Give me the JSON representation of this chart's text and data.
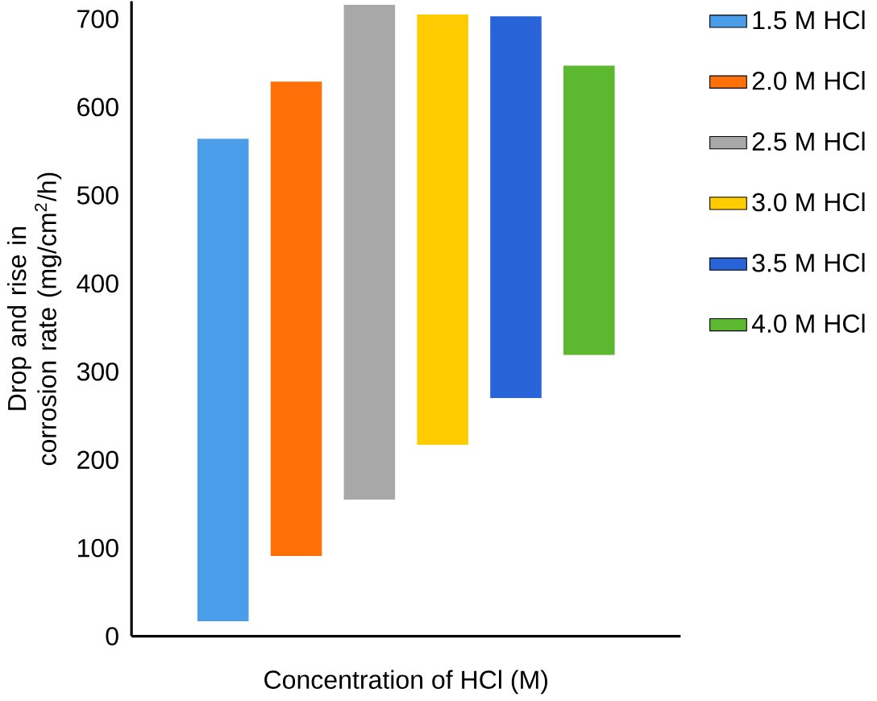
{
  "chart_data": {
    "type": "bar",
    "xlabel": "Concentration of HCl (M)",
    "ylabel": "Drop and rise in corrosion rate (mg/cm$^{2}$/h)",
    "categories": [
      null
    ],
    "ylim": [
      0,
      720
    ],
    "yticks": [
      0,
      100,
      200,
      300,
      400,
      500,
      600,
      700
    ],
    "grid": false,
    "legend": "right",
    "series": [
      {
        "name": "1.5 M HCl",
        "color": "#4a9de8",
        "base": [
          17
        ],
        "values": [
          547
        ]
      },
      {
        "name": "2.0 M HCl",
        "color": "#ff7008",
        "base": [
          91
        ],
        "values": [
          538
        ]
      },
      {
        "name": "2.5 M HCl",
        "color": "#a8a8a8",
        "base": [
          155
        ],
        "values": [
          561
        ]
      },
      {
        "name": "3.0 M HCl",
        "color": "#ffcc00",
        "base": [
          217
        ],
        "values": [
          488
        ]
      },
      {
        "name": "3.5 M HCl",
        "color": "#2864d8",
        "base": [
          270
        ],
        "values": [
          433
        ]
      },
      {
        "name": "4.0 M HCl",
        "color": "#5cb82e",
        "base": [
          319
        ],
        "values": [
          328
        ]
      }
    ]
  }
}
